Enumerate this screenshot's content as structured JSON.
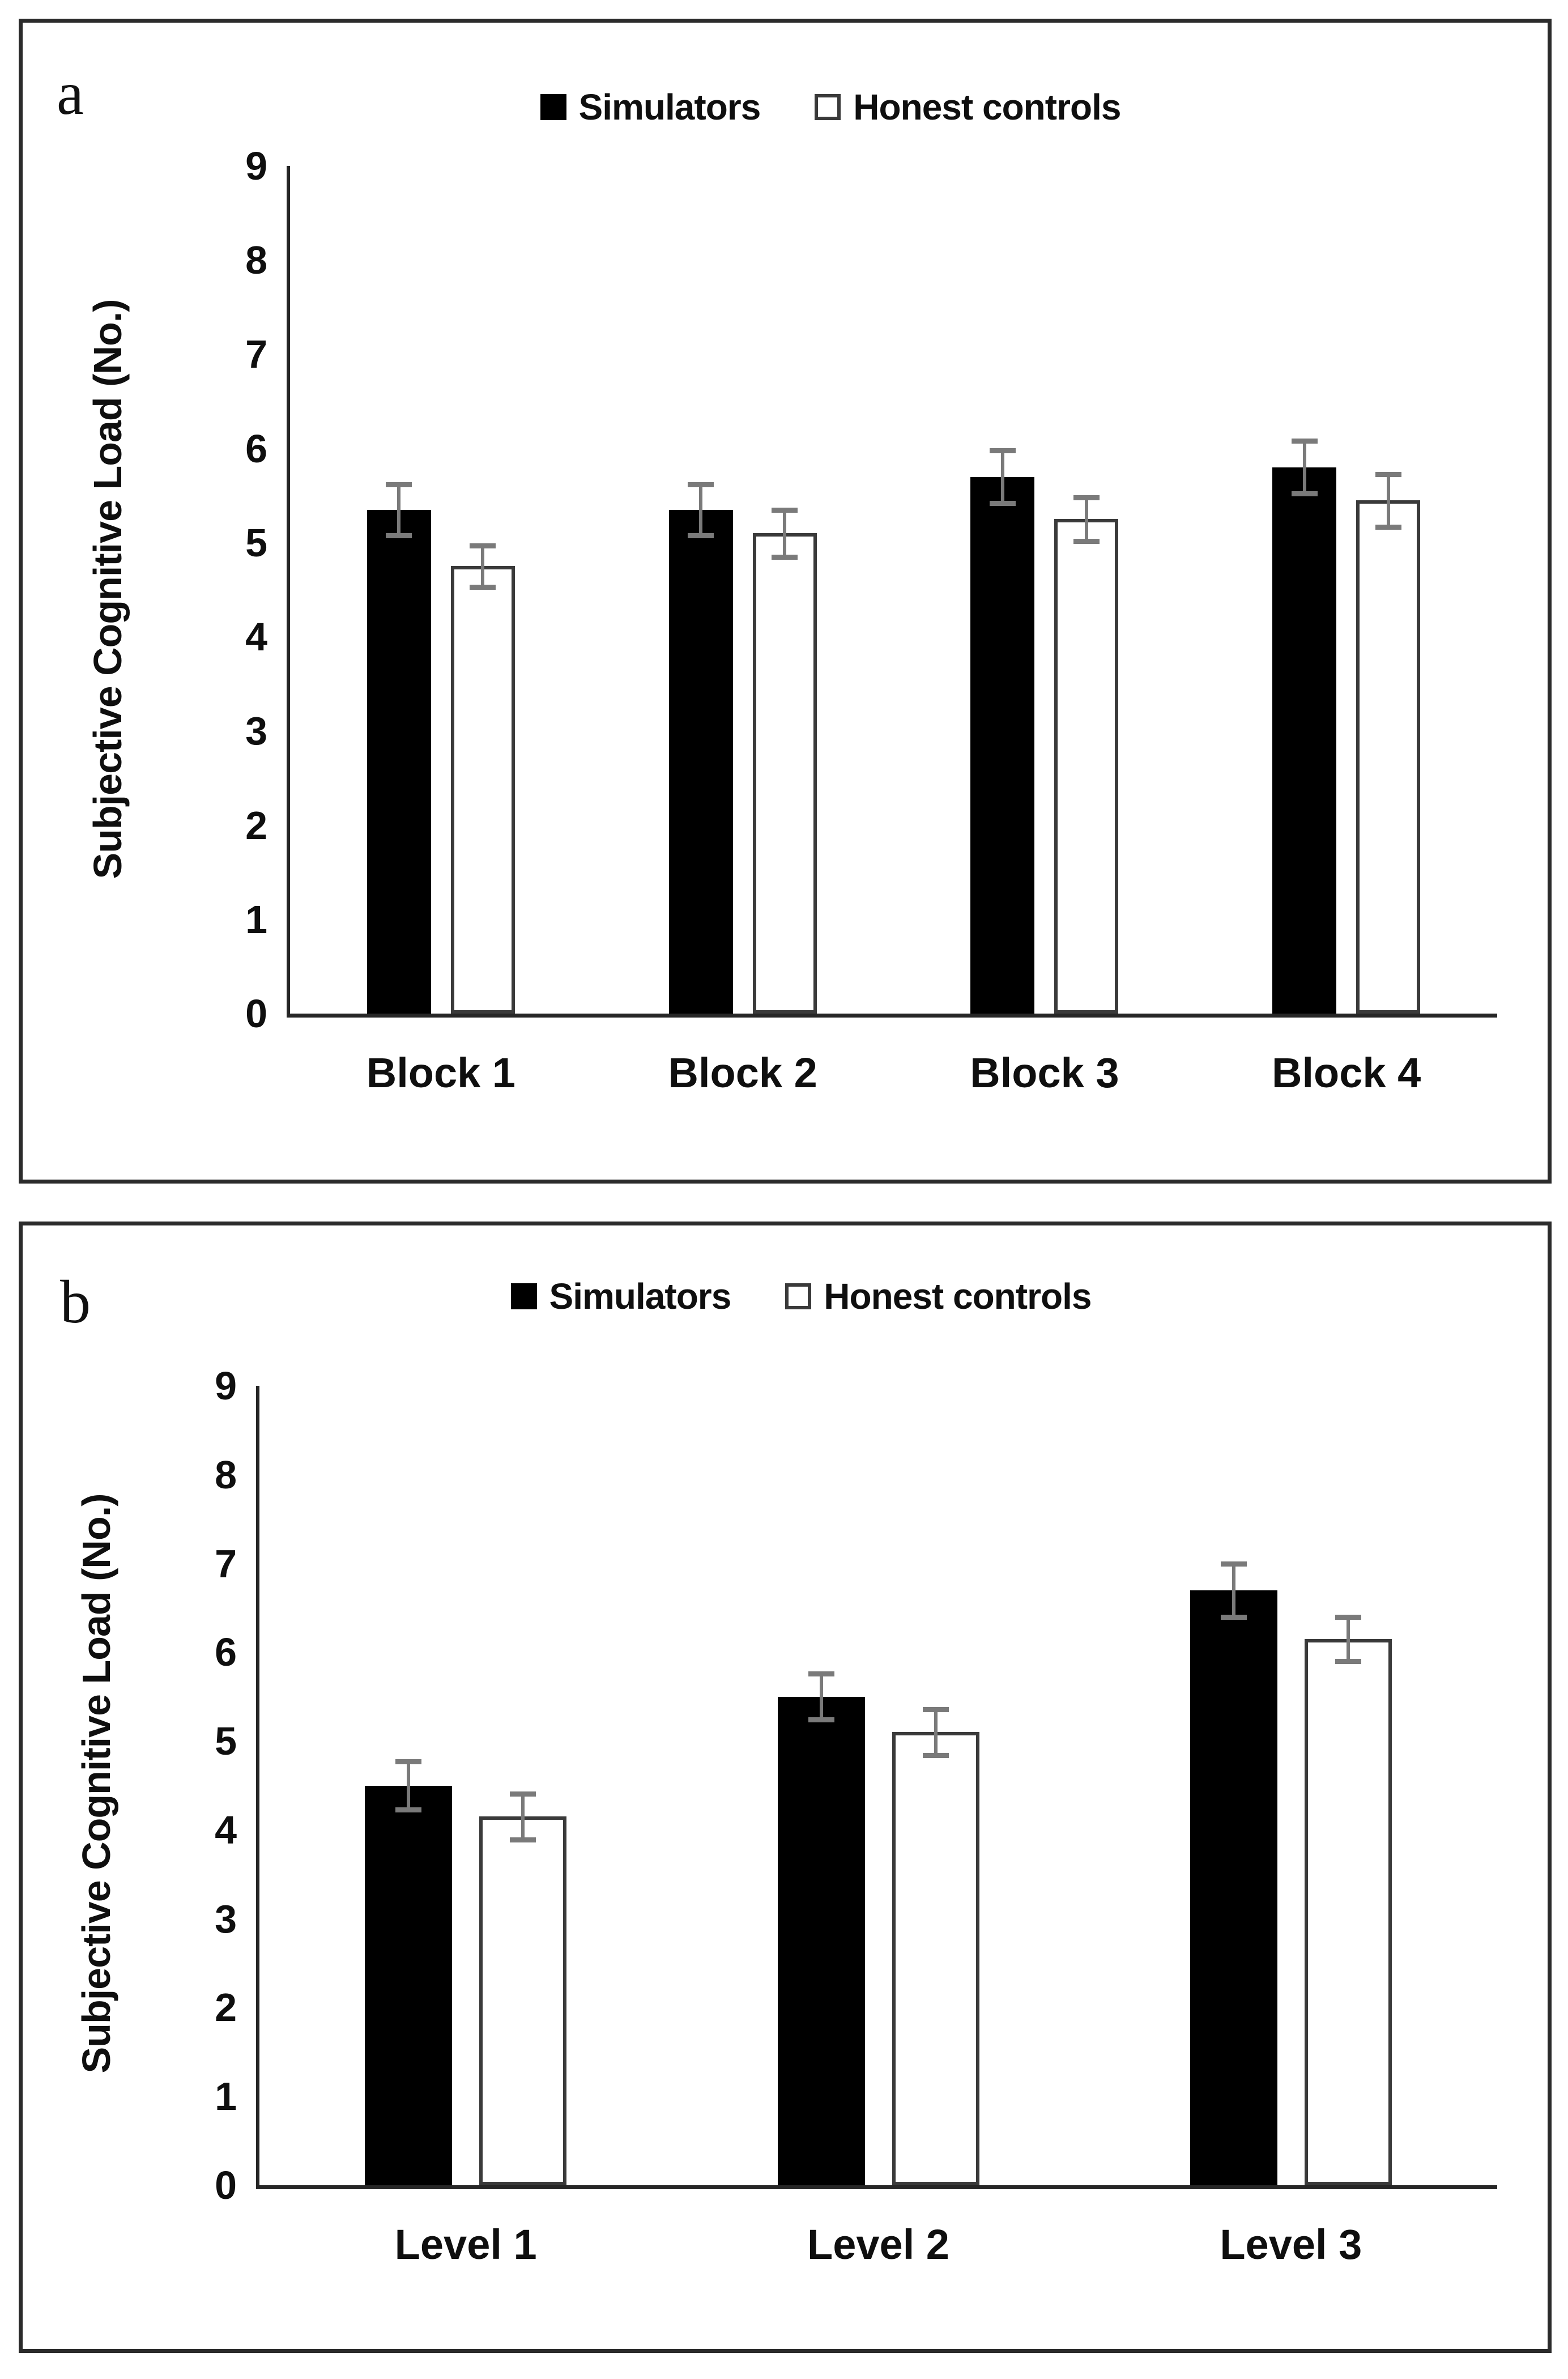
{
  "legend": {
    "items": [
      {
        "label": "Simulators",
        "swatch": "filled-black-square"
      },
      {
        "label": "Honest controls",
        "swatch": "outlined-white-square"
      }
    ]
  },
  "colors": {
    "simulators_bar": "#000000",
    "honest_bar_fill": "#ffffff",
    "honest_bar_border": "#3a3a3a",
    "error_bar": "#7a7a7a",
    "axis": "#262626",
    "panel_border": "#2b2b2b",
    "text": "#0f0f0f"
  },
  "chart_data": [
    {
      "type": "bar",
      "panel_letter": "a",
      "title": "",
      "xlabel": "",
      "ylabel": "Subjective Cognitive Load (No.)",
      "ylim": [
        0,
        9
      ],
      "yticks": [
        0,
        1,
        2,
        3,
        4,
        5,
        6,
        7,
        8,
        9
      ],
      "grid": "off",
      "legend_position": "top-center",
      "categories": [
        "Block 1",
        "Block 2",
        "Block 3",
        "Block 4"
      ],
      "series": [
        {
          "name": "Simulators",
          "values": [
            5.35,
            5.35,
            5.7,
            5.8
          ],
          "errors": [
            0.27,
            0.27,
            0.28,
            0.28
          ]
        },
        {
          "name": "Honest controls",
          "values": [
            4.75,
            5.1,
            5.25,
            5.45
          ],
          "errors": [
            0.22,
            0.25,
            0.23,
            0.28
          ]
        }
      ]
    },
    {
      "type": "bar",
      "panel_letter": "b",
      "title": "",
      "xlabel": "",
      "ylabel": "Subjective Cognitive Load (No.)",
      "ylim": [
        0,
        9
      ],
      "yticks": [
        0,
        1,
        2,
        3,
        4,
        5,
        6,
        7,
        8,
        9
      ],
      "grid": "off",
      "legend_position": "top-center",
      "categories": [
        "Level 1",
        "Level 2",
        "Level 3"
      ],
      "series": [
        {
          "name": "Simulators",
          "values": [
            4.5,
            5.5,
            6.7
          ],
          "errors": [
            0.27,
            0.26,
            0.3
          ]
        },
        {
          "name": "Honest controls",
          "values": [
            4.15,
            5.1,
            6.15
          ],
          "errors": [
            0.26,
            0.26,
            0.25
          ]
        }
      ]
    }
  ]
}
